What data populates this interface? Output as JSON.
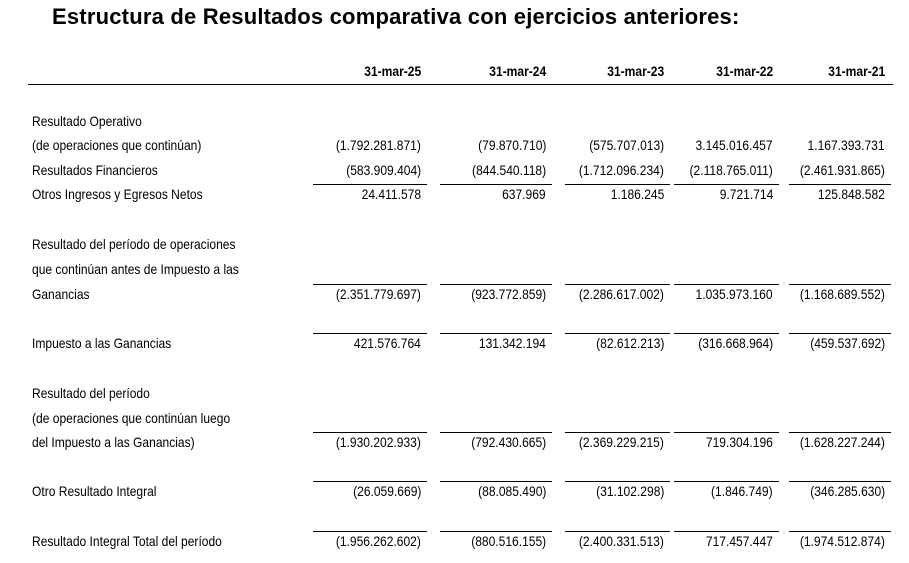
{
  "title": "Estructura de Resultados comparativa con ejercicios anteriores:",
  "columns": [
    "31-mar-25",
    "31-mar-24",
    "31-mar-23",
    "31-mar-22",
    "31-mar-21"
  ],
  "rows": [
    {
      "id": "resultado-operativo",
      "label": [
        "Resultado Operativo",
        "(de operaciones que continúan)"
      ],
      "values": [
        "(1.792.281.871)",
        "(79.870.710)",
        "(575.707.013)",
        "3.145.016.457",
        "1.167.393.731"
      ],
      "underline": false
    },
    {
      "id": "resultados-financieros",
      "label": [
        "Resultados Financieros"
      ],
      "values": [
        "(583.909.404)",
        "(844.540.118)",
        "(1.712.096.234)",
        "(2.118.765.011)",
        "(2.461.931.865)"
      ],
      "underline": false
    },
    {
      "id": "otros-ingresos-egresos",
      "label": [
        "Otros Ingresos y Egresos Netos"
      ],
      "values": [
        "24.411.578",
        "637.969",
        "1.186.245",
        "9.721.714",
        "125.848.582"
      ],
      "underline": true
    },
    {
      "id": "resultado-antes-impuesto",
      "label": [
        "Resultado del período de operaciones",
        "que continúan antes de Impuesto a las",
        "Ganancias"
      ],
      "values": [
        "(2.351.779.697)",
        "(923.772.859)",
        "(2.286.617.002)",
        "1.035.973.160",
        "(1.168.689.552)"
      ],
      "underline": true
    },
    {
      "id": "impuesto-ganancias",
      "label": [
        "Impuesto a las Ganancias"
      ],
      "values": [
        "421.576.764",
        "131.342.194",
        "(82.612.213)",
        "(316.668.964)",
        "(459.537.692)"
      ],
      "underline": true
    },
    {
      "id": "resultado-periodo",
      "label": [
        "Resultado del período",
        "(de operaciones que continúan luego",
        "del Impuesto a las Ganancias)"
      ],
      "values": [
        "(1.930.202.933)",
        "(792.430.665)",
        "(2.369.229.215)",
        "719.304.196",
        "(1.628.227.244)"
      ],
      "underline": true
    },
    {
      "id": "otro-resultado-integral",
      "label": [
        "Otro Resultado Integral"
      ],
      "values": [
        "(26.059.669)",
        "(88.085.490)",
        "(31.102.298)",
        "(1.846.749)",
        "(346.285.630)"
      ],
      "underline": true
    },
    {
      "id": "resultado-integral-total",
      "label": [
        "Resultado Integral Total del período"
      ],
      "values": [
        "(1.956.262.602)",
        "(880.516.155)",
        "(2.400.331.513)",
        "717.457.447",
        "(1.974.512.874)"
      ],
      "underline": true
    }
  ]
}
